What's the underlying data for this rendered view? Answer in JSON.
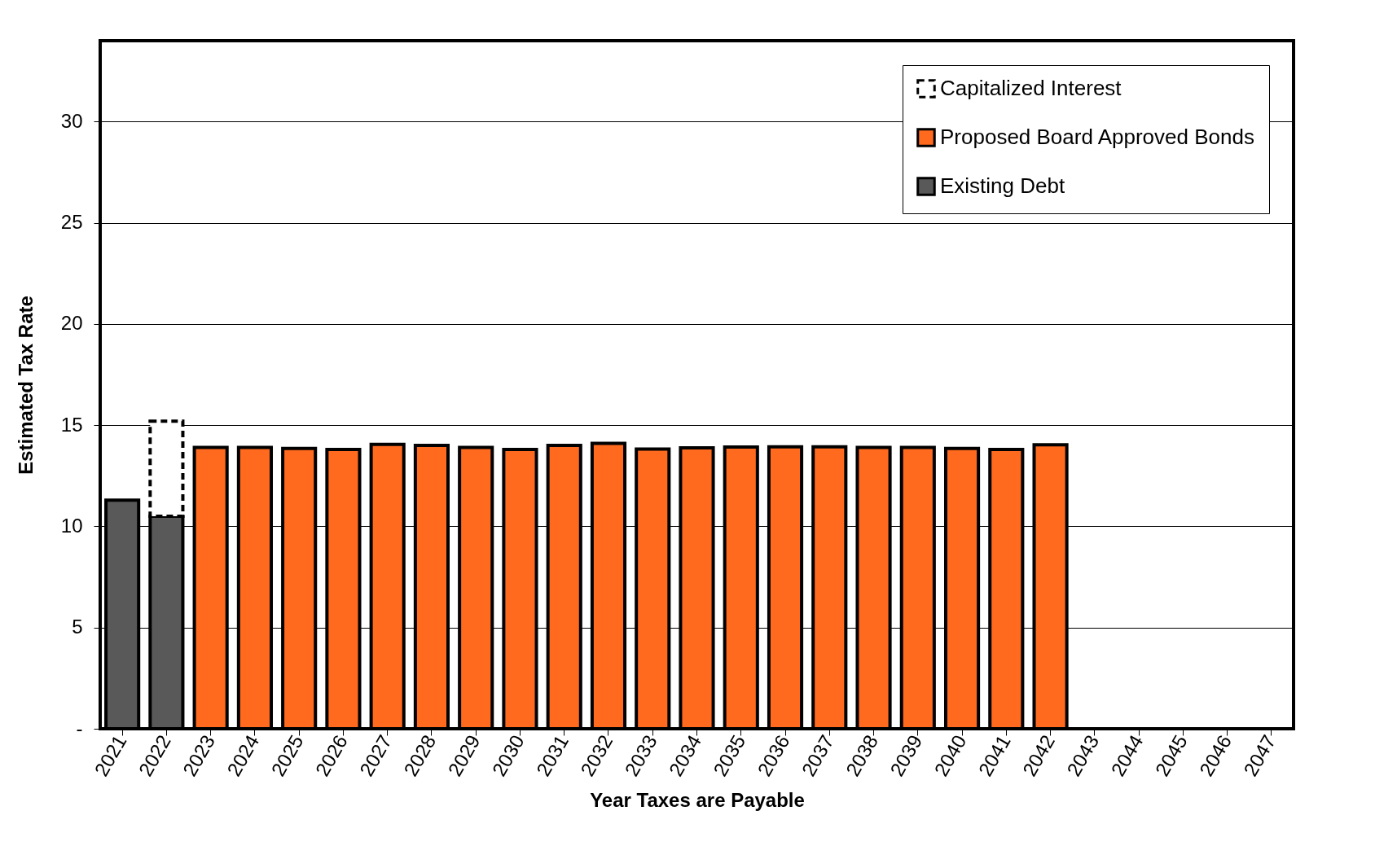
{
  "chart_data": {
    "type": "bar",
    "stacked": true,
    "xlabel": "Year Taxes are Payable",
    "ylabel": "Estimated Tax Rate",
    "categories": [
      "2021",
      "2022",
      "2023",
      "2024",
      "2025",
      "2026",
      "2027",
      "2028",
      "2029",
      "2030",
      "2031",
      "2032",
      "2033",
      "2034",
      "2035",
      "2036",
      "2037",
      "2038",
      "2039",
      "2040",
      "2041",
      "2042",
      "2043",
      "2044",
      "2045",
      "2046",
      "2047"
    ],
    "series": [
      {
        "name": "Existing Debt",
        "color": "#595959",
        "values": [
          11.3,
          10.5,
          null,
          null,
          null,
          null,
          null,
          null,
          null,
          null,
          null,
          null,
          null,
          null,
          null,
          null,
          null,
          null,
          null,
          null,
          null,
          null,
          null,
          null,
          null,
          null,
          null
        ]
      },
      {
        "name": "Proposed Board Approved Bonds",
        "color": "#ff6a1f",
        "values": [
          null,
          null,
          13.9,
          13.9,
          13.85,
          13.8,
          14.05,
          14.0,
          13.9,
          13.8,
          14.0,
          14.1,
          13.82,
          13.88,
          13.92,
          13.93,
          13.93,
          13.9,
          13.9,
          13.85,
          13.8,
          14.03,
          null,
          null,
          null,
          null,
          null
        ]
      },
      {
        "name": "Capitalized Interest",
        "color": "#ffffff",
        "line_style": "dashed",
        "values": [
          null,
          4.7,
          null,
          null,
          null,
          null,
          null,
          null,
          null,
          null,
          null,
          null,
          null,
          null,
          null,
          null,
          null,
          null,
          null,
          null,
          null,
          null,
          null,
          null,
          null,
          null,
          null
        ]
      }
    ],
    "ylim": [
      0,
      34
    ],
    "yticks": [
      {
        "value": 0,
        "label": "-"
      },
      5,
      10,
      15,
      20,
      25,
      30
    ],
    "grid": "y",
    "legend": "top right"
  }
}
